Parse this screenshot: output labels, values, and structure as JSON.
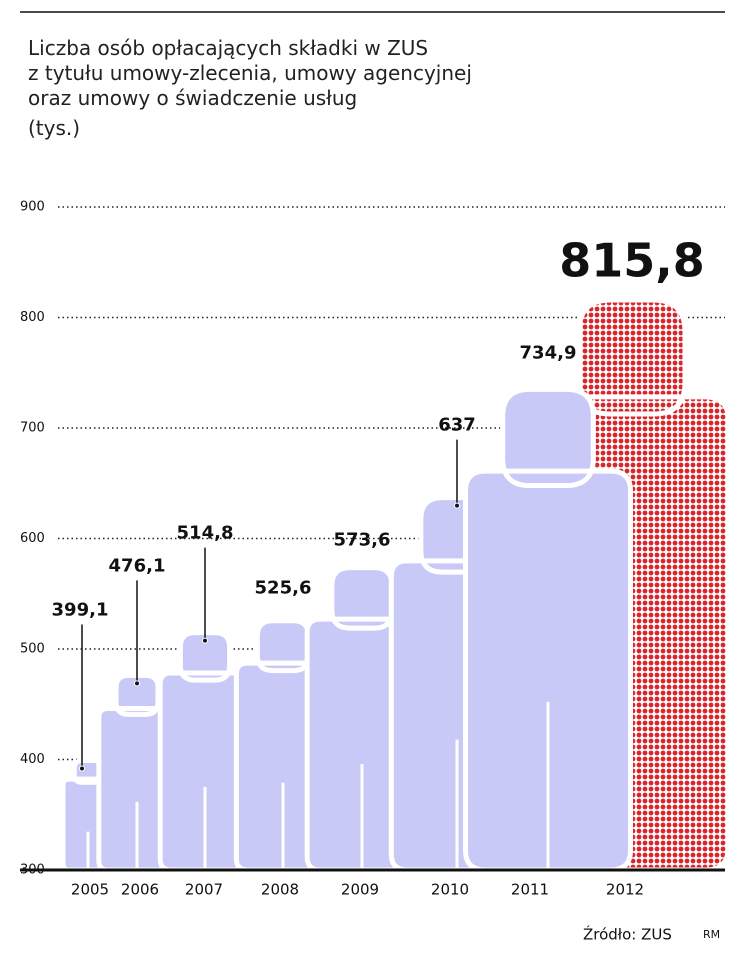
{
  "chart_data": {
    "type": "pictograph",
    "title_lines": [
      "Liczba osób opłacających składki w ZUS",
      "z tytułu umowy-zlecenia, umowy agencyjnej",
      "oraz umowy o świadczenie usług"
    ],
    "unit": "(tys.)",
    "categories": [
      "2005",
      "2006",
      "2007",
      "2008",
      "2009",
      "2010",
      "2011",
      "2012"
    ],
    "values": [
      399.1,
      476.1,
      514.8,
      525.6,
      573.6,
      637,
      734.9,
      815.8
    ],
    "value_labels": [
      "399,1",
      "476,1",
      "514,8",
      "525,6",
      "573,6",
      "637",
      "734,9",
      "815,8"
    ],
    "colors": [
      "#c9c9f7",
      "#c9c9f7",
      "#c9c9f7",
      "#c9c9f7",
      "#c9c9f7",
      "#c9c9f7",
      "#c9c9f7",
      "#d9262b"
    ],
    "ylim": [
      300,
      900
    ],
    "yticks": [
      300,
      400,
      500,
      600,
      700,
      800,
      900
    ],
    "grid": true,
    "source": "Źródło: ZUS",
    "credit": "RM"
  }
}
